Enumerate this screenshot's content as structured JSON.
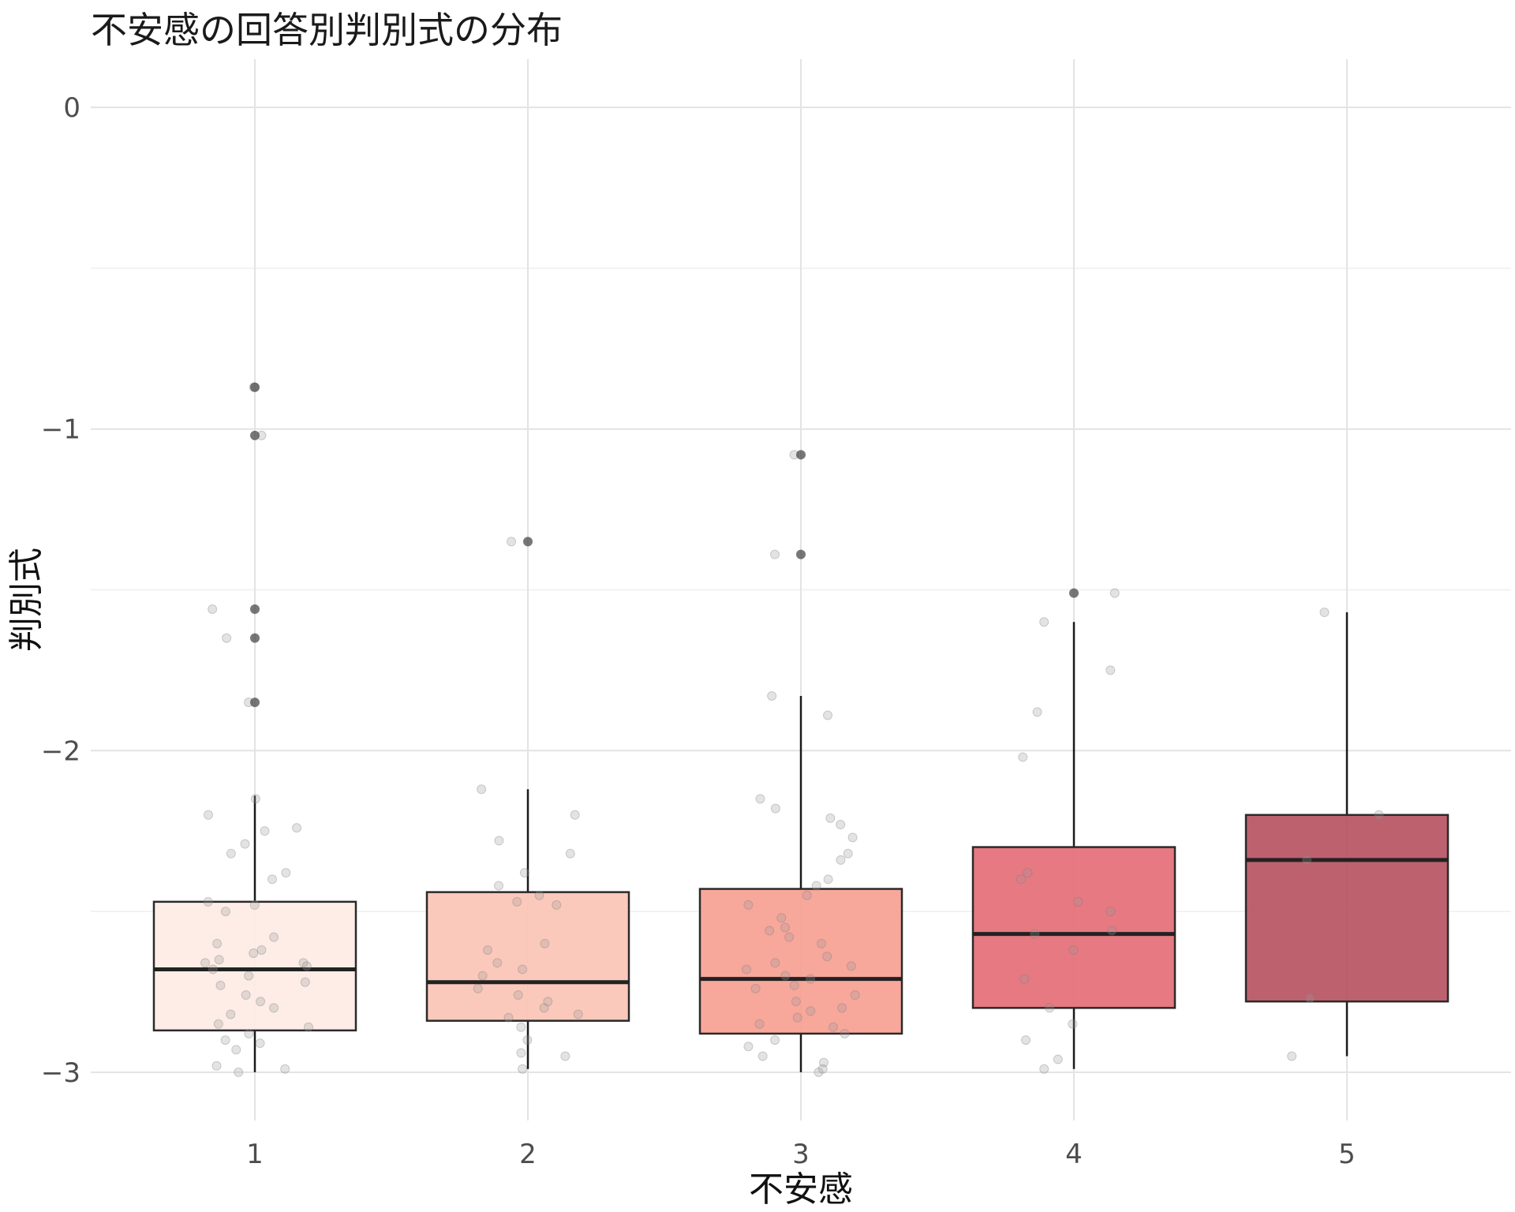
{
  "chart_data": {
    "type": "boxplot",
    "title": "不安感の回答別判別式の分布",
    "xlabel": "不安感",
    "ylabel": "判別式",
    "categories": [
      "1",
      "2",
      "3",
      "4",
      "5"
    ],
    "y_ticks": [
      "0",
      "−1",
      "−2",
      "−3"
    ],
    "y_tick_values": [
      0,
      -1,
      -2,
      -3
    ],
    "ylim": [
      -3.15,
      0.15
    ],
    "grid": true,
    "legend": "none",
    "colors": [
      "#fdebe3",
      "#fbc3b4",
      "#f79d90",
      "#e36a73",
      "#b7505e"
    ],
    "boxes": [
      {
        "category": "1",
        "whisker_low": -3.0,
        "q1": -2.87,
        "median": -2.68,
        "q3": -2.47,
        "whisker_high": -2.14,
        "outliers": [
          -0.87,
          -1.02,
          -1.56,
          -1.65,
          -1.85
        ]
      },
      {
        "category": "2",
        "whisker_low": -2.99,
        "q1": -2.84,
        "median": -2.72,
        "q3": -2.44,
        "whisker_high": -2.12,
        "outliers": [
          -1.35
        ]
      },
      {
        "category": "3",
        "whisker_low": -3.0,
        "q1": -2.88,
        "median": -2.71,
        "q3": -2.43,
        "whisker_high": -1.83,
        "outliers": [
          -1.08,
          -1.39
        ]
      },
      {
        "category": "4",
        "whisker_low": -2.99,
        "q1": -2.8,
        "median": -2.57,
        "q3": -2.3,
        "whisker_high": -1.6,
        "outliers": [
          -1.51
        ]
      },
      {
        "category": "5",
        "whisker_low": -2.95,
        "q1": -2.78,
        "median": -2.34,
        "q3": -2.2,
        "whisker_high": -1.57,
        "outliers": []
      }
    ],
    "jitter_points": [
      {
        "category": "1",
        "values": [
          -0.87,
          -1.02,
          -1.56,
          -1.65,
          -1.85,
          -2.15,
          -2.2,
          -2.24,
          -2.25,
          -2.29,
          -2.32,
          -2.38,
          -2.4,
          -2.47,
          -2.48,
          -2.5,
          -2.58,
          -2.6,
          -2.62,
          -2.63,
          -2.65,
          -2.66,
          -2.66,
          -2.67,
          -2.68,
          -2.7,
          -2.72,
          -2.73,
          -2.76,
          -2.78,
          -2.8,
          -2.82,
          -2.85,
          -2.86,
          -2.88,
          -2.9,
          -2.91,
          -2.93,
          -2.98,
          -2.99,
          -3.0
        ]
      },
      {
        "category": "2",
        "values": [
          -1.35,
          -2.12,
          -2.2,
          -2.28,
          -2.32,
          -2.38,
          -2.42,
          -2.45,
          -2.47,
          -2.48,
          -2.6,
          -2.62,
          -2.66,
          -2.68,
          -2.7,
          -2.74,
          -2.76,
          -2.78,
          -2.8,
          -2.82,
          -2.83,
          -2.86,
          -2.9,
          -2.94,
          -2.95,
          -2.99
        ]
      },
      {
        "category": "3",
        "values": [
          -1.08,
          -1.39,
          -1.83,
          -1.89,
          -2.15,
          -2.18,
          -2.21,
          -2.23,
          -2.27,
          -2.32,
          -2.34,
          -2.4,
          -2.42,
          -2.45,
          -2.48,
          -2.52,
          -2.55,
          -2.56,
          -2.58,
          -2.6,
          -2.64,
          -2.66,
          -2.67,
          -2.68,
          -2.7,
          -2.71,
          -2.73,
          -2.74,
          -2.76,
          -2.78,
          -2.8,
          -2.81,
          -2.83,
          -2.85,
          -2.86,
          -2.88,
          -2.9,
          -2.92,
          -2.95,
          -2.97,
          -2.99,
          -3.0
        ]
      },
      {
        "category": "4",
        "values": [
          -1.51,
          -1.6,
          -1.75,
          -1.88,
          -2.02,
          -2.38,
          -2.4,
          -2.47,
          -2.5,
          -2.56,
          -2.57,
          -2.62,
          -2.71,
          -2.8,
          -2.85,
          -2.9,
          -2.96,
          -2.99
        ]
      },
      {
        "category": "5",
        "values": [
          -1.57,
          -2.2,
          -2.34,
          -2.77,
          -2.95
        ]
      }
    ]
  }
}
